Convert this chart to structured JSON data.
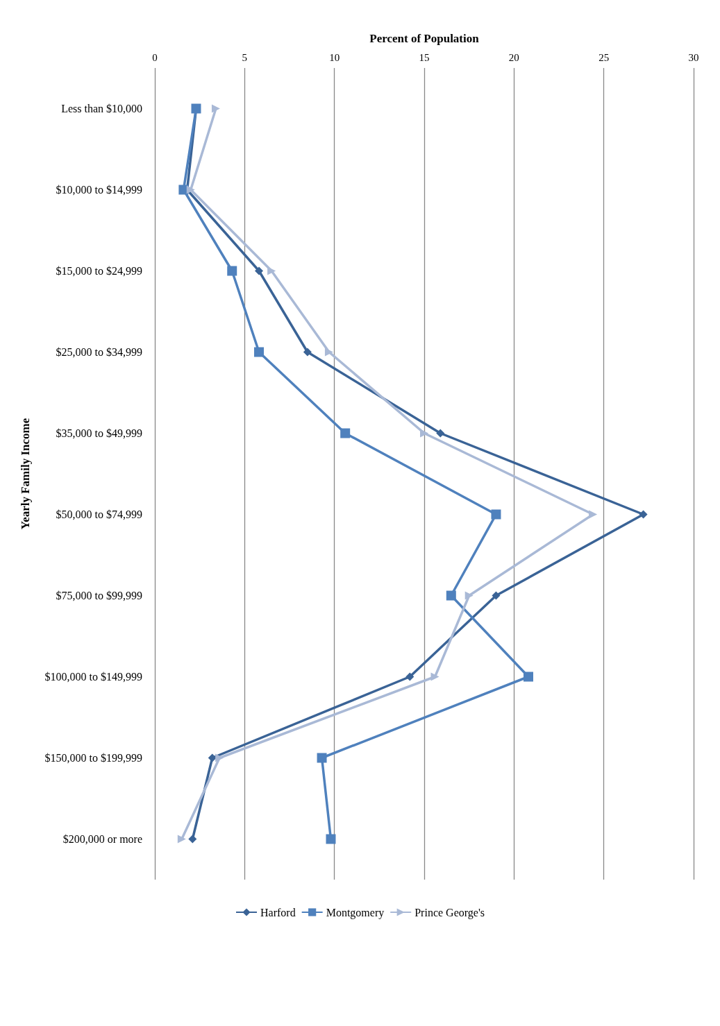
{
  "chart_data": {
    "type": "line",
    "orientation": "horizontal",
    "xlabel": "Percent of Population",
    "ylabel": "Yearly Family Income",
    "categories": [
      "Less than $10,000",
      "$10,000 to $14,999",
      "$15,000 to $24,999",
      "$25,000 to $34,999",
      "$35,000 to $49,999",
      "$50,000 to $74,999",
      "$75,000 to $99,999",
      "$100,000 to $149,999",
      "$150,000 to $199,999",
      "$200,000 or more"
    ],
    "series": [
      {
        "name": "Harford",
        "color": "#3a6396",
        "marker": "diamond",
        "values": [
          2.3,
          1.8,
          5.8,
          8.5,
          15.9,
          27.2,
          19.0,
          14.2,
          3.2,
          2.1
        ]
      },
      {
        "name": "Montgomery",
        "color": "#4f81bd",
        "marker": "square",
        "values": [
          2.3,
          1.6,
          4.3,
          5.8,
          10.6,
          19.0,
          16.5,
          20.8,
          9.3,
          9.8
        ]
      },
      {
        "name": "Prince George's",
        "color": "#a9b9d6",
        "marker": "triangle",
        "values": [
          3.4,
          2.0,
          6.5,
          9.7,
          15.0,
          24.4,
          17.5,
          15.6,
          3.6,
          1.5
        ]
      }
    ],
    "xlim": [
      0,
      30
    ],
    "xticks": [
      0,
      5,
      10,
      15,
      20,
      25,
      30
    ],
    "grid": "x",
    "legend": "bottom",
    "line_style": "solid"
  }
}
